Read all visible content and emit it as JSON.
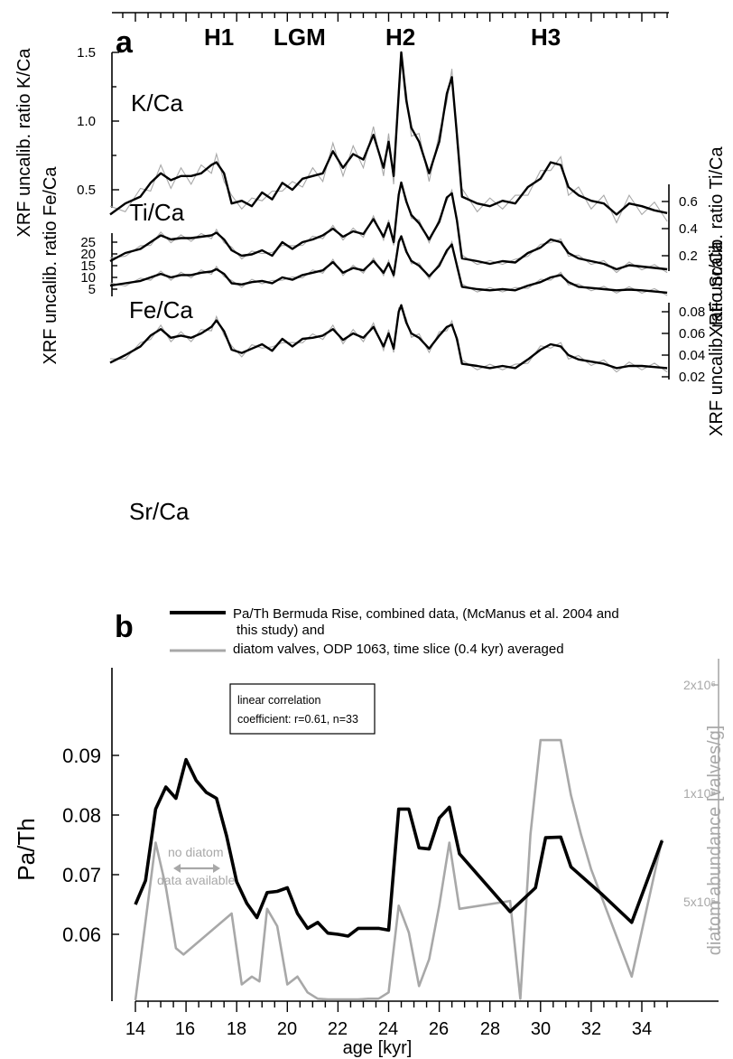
{
  "panel_a": {
    "label": "a",
    "events": [
      "H1",
      "LGM",
      "H2",
      "H3"
    ],
    "series_labels": [
      "K/Ca",
      "Ti/Ca",
      "Fe/Ca",
      "Sr/Ca"
    ],
    "ylabel_k": "XRF uncalib. ratio K/Ca",
    "ylabel_ti": "XRF uncalib. ratio Ti/Ca",
    "ylabel_fe": "XRF uncalib. ratio Fe/Ca",
    "ylabel_sr": "XRF uncalib. ratio Sr/Ca",
    "ticks_k": [
      "1.5",
      "1.0",
      "0.5"
    ],
    "ticks_ti": [
      "0.6",
      "0.4",
      "0.2"
    ],
    "ticks_fe": [
      "25",
      "20",
      "15",
      "10",
      "5"
    ],
    "ticks_sr": [
      "0.08",
      "0.06",
      "0.04",
      "0.02"
    ]
  },
  "panel_b": {
    "label": "b",
    "legend_line1": "Pa/Th Bermuda Rise, combined data, (McManus et al. 2004 and",
    "legend_line2": "this study) and",
    "legend_line3": "diatom valves, ODP 1063, time slice (0.4 kyr) averaged",
    "box_line1": "linear correlation",
    "box_line2": "coefficient: r=0.61, n=33",
    "annot_line1": "no diatom",
    "annot_line2": "data available",
    "ylabel_left": "Pa/Th",
    "ylabel_right": "diatom abundance [valves/g]",
    "xlabel": "age [kyr]",
    "right_ticks": [
      "2x10⁶",
      "1x10⁶",
      "5x10⁵"
    ],
    "left_ticks": [
      "0.09",
      "0.08",
      "0.07",
      "0.06"
    ],
    "x_ticks": [
      "14",
      "16",
      "18",
      "20",
      "22",
      "24",
      "26",
      "28",
      "30",
      "32",
      "34"
    ]
  },
  "colors": {
    "black_series": "#000000",
    "gray_series": "#a8a8a8"
  },
  "chart_data": [
    {
      "type": "line",
      "title": "",
      "xlabel": "",
      "ylabel": "XRF uncalib. ratio K/Ca",
      "ylim": [
        0.25,
        1.5
      ],
      "series": [
        {
          "name": "K/Ca",
          "x": [
            13.0,
            13.6,
            14.2,
            14.6,
            15.0,
            15.4,
            15.8,
            16.2,
            16.6,
            17.0,
            17.2,
            17.5,
            17.8,
            18.2,
            18.6,
            19.0,
            19.4,
            19.8,
            20.2,
            20.6,
            21.0,
            21.4,
            21.8,
            22.2,
            22.6,
            23.0,
            23.4,
            23.8,
            24.0,
            24.2,
            24.4,
            24.5,
            24.7,
            24.9,
            25.2,
            25.6,
            26.0,
            26.3,
            26.5,
            26.7,
            26.9,
            27.5,
            28.0,
            28.5,
            29.0,
            29.5,
            30.0,
            30.4,
            30.8,
            31.1,
            31.5,
            32.0,
            32.5,
            33.0,
            33.5,
            34.0,
            34.5,
            35.0
          ],
          "values": [
            0.32,
            0.4,
            0.45,
            0.55,
            0.62,
            0.57,
            0.6,
            0.6,
            0.62,
            0.68,
            0.7,
            0.62,
            0.4,
            0.42,
            0.38,
            0.48,
            0.43,
            0.55,
            0.5,
            0.58,
            0.6,
            0.62,
            0.78,
            0.66,
            0.76,
            0.72,
            0.9,
            0.66,
            0.85,
            0.6,
            1.2,
            1.5,
            1.15,
            0.95,
            0.85,
            0.62,
            0.85,
            1.2,
            1.32,
            0.9,
            0.45,
            0.4,
            0.38,
            0.42,
            0.4,
            0.52,
            0.58,
            0.7,
            0.68,
            0.52,
            0.46,
            0.42,
            0.4,
            0.32,
            0.4,
            0.38,
            0.35,
            0.33
          ]
        }
      ]
    },
    {
      "type": "line",
      "title": "",
      "xlabel": "",
      "ylabel": "XRF uncalib. ratio Ti/Ca",
      "ylim": [
        0.1,
        0.72
      ],
      "series": [
        {
          "name": "Ti/Ca",
          "x": [
            13.0,
            13.6,
            14.2,
            14.6,
            15.0,
            15.4,
            15.8,
            16.2,
            16.6,
            17.0,
            17.2,
            17.5,
            17.8,
            18.2,
            18.6,
            19.0,
            19.4,
            19.8,
            20.2,
            20.6,
            21.0,
            21.4,
            21.8,
            22.2,
            22.6,
            23.0,
            23.4,
            23.8,
            24.0,
            24.2,
            24.4,
            24.5,
            24.7,
            24.9,
            25.2,
            25.6,
            26.0,
            26.3,
            26.5,
            26.7,
            26.9,
            27.5,
            28.0,
            28.5,
            29.0,
            29.5,
            30.0,
            30.4,
            30.8,
            31.1,
            31.5,
            32.0,
            32.5,
            33.0,
            33.5,
            34.0,
            34.5,
            35.0
          ],
          "values": [
            0.16,
            0.22,
            0.25,
            0.3,
            0.35,
            0.32,
            0.33,
            0.33,
            0.34,
            0.35,
            0.37,
            0.32,
            0.24,
            0.2,
            0.21,
            0.24,
            0.2,
            0.3,
            0.25,
            0.3,
            0.32,
            0.35,
            0.4,
            0.34,
            0.38,
            0.36,
            0.47,
            0.34,
            0.44,
            0.3,
            0.65,
            0.74,
            0.6,
            0.5,
            0.44,
            0.32,
            0.45,
            0.63,
            0.66,
            0.46,
            0.18,
            0.16,
            0.14,
            0.16,
            0.15,
            0.22,
            0.26,
            0.32,
            0.3,
            0.22,
            0.18,
            0.16,
            0.14,
            0.1,
            0.13,
            0.12,
            0.11,
            0.1
          ]
        }
      ]
    },
    {
      "type": "line",
      "title": "",
      "xlabel": "",
      "ylabel": "XRF uncalib. ratio Fe/Ca",
      "ylim": [
        3,
        28
      ],
      "series": [
        {
          "name": "Fe/Ca",
          "x": [
            13.0,
            13.6,
            14.2,
            14.6,
            15.0,
            15.4,
            15.8,
            16.2,
            16.6,
            17.0,
            17.2,
            17.5,
            17.8,
            18.2,
            18.6,
            19.0,
            19.4,
            19.8,
            20.2,
            20.6,
            21.0,
            21.4,
            21.8,
            22.2,
            22.6,
            23.0,
            23.4,
            23.8,
            24.0,
            24.2,
            24.4,
            24.5,
            24.7,
            24.9,
            25.2,
            25.6,
            26.0,
            26.3,
            26.5,
            26.7,
            26.9,
            27.5,
            28.0,
            28.5,
            29.0,
            29.5,
            30.0,
            30.4,
            30.8,
            31.1,
            31.5,
            32.0,
            32.5,
            33.0,
            33.5,
            34.0,
            34.5,
            35.0
          ],
          "values": [
            6.5,
            7.5,
            8.5,
            10.0,
            11.5,
            10.0,
            11.0,
            11.0,
            12.0,
            12.5,
            13.5,
            11.5,
            7.5,
            7.0,
            8.0,
            8.5,
            7.5,
            10.0,
            9.0,
            11.0,
            12.0,
            13.0,
            16.5,
            12.0,
            14.0,
            13.0,
            17.0,
            12.0,
            16.0,
            11.0,
            25.0,
            27.5,
            21.0,
            17.0,
            15.0,
            10.5,
            15.0,
            21.5,
            24.0,
            15.0,
            6.0,
            5.0,
            4.5,
            5.0,
            4.5,
            6.5,
            8.0,
            10.0,
            11.0,
            8.0,
            6.0,
            5.5,
            5.0,
            4.5,
            4.8,
            4.5,
            4.0,
            3.5
          ]
        }
      ]
    },
    {
      "type": "line",
      "title": "",
      "xlabel": "",
      "ylabel": "XRF uncalib. ratio Sr/Ca",
      "ylim": [
        0.02,
        0.095
      ],
      "series": [
        {
          "name": "Sr/Ca",
          "x": [
            13.0,
            13.6,
            14.2,
            14.6,
            15.0,
            15.4,
            15.8,
            16.2,
            16.6,
            17.0,
            17.2,
            17.5,
            17.8,
            18.2,
            18.6,
            19.0,
            19.4,
            19.8,
            20.2,
            20.6,
            21.0,
            21.4,
            21.8,
            22.2,
            22.6,
            23.0,
            23.4,
            23.8,
            24.0,
            24.2,
            24.4,
            24.5,
            24.7,
            24.9,
            25.2,
            25.6,
            26.0,
            26.3,
            26.5,
            26.7,
            26.9,
            27.5,
            28.0,
            28.5,
            29.0,
            29.5,
            30.0,
            30.4,
            30.8,
            31.1,
            31.5,
            32.0,
            32.5,
            33.0,
            33.5,
            34.0,
            34.5,
            35.0
          ],
          "values": [
            0.033,
            0.04,
            0.048,
            0.058,
            0.064,
            0.056,
            0.058,
            0.056,
            0.06,
            0.066,
            0.072,
            0.062,
            0.045,
            0.042,
            0.046,
            0.05,
            0.044,
            0.055,
            0.048,
            0.055,
            0.056,
            0.058,
            0.064,
            0.054,
            0.06,
            0.056,
            0.066,
            0.048,
            0.06,
            0.046,
            0.08,
            0.086,
            0.07,
            0.06,
            0.056,
            0.046,
            0.058,
            0.066,
            0.068,
            0.055,
            0.032,
            0.03,
            0.028,
            0.03,
            0.028,
            0.036,
            0.045,
            0.05,
            0.048,
            0.04,
            0.036,
            0.034,
            0.032,
            0.028,
            0.03,
            0.03,
            0.029,
            0.028
          ]
        }
      ]
    },
    {
      "type": "line",
      "title": "",
      "xlabel": "age [kyr]",
      "ylabel": "Pa/Th",
      "xlim": [
        13,
        35
      ],
      "ylim": [
        0.055,
        0.095
      ],
      "series": [
        {
          "name": "Pa/Th Bermuda Rise, combined data, (McManus et al. 2004 and this study)",
          "x": [
            14.0,
            14.4,
            14.8,
            15.2,
            15.6,
            16.0,
            16.4,
            16.8,
            17.2,
            17.6,
            18.0,
            18.4,
            18.8,
            19.2,
            19.6,
            20.0,
            20.4,
            20.8,
            21.2,
            21.6,
            22.0,
            22.4,
            22.8,
            23.2,
            23.6,
            24.0,
            24.4,
            24.8,
            25.2,
            25.6,
            26.0,
            26.4,
            26.8,
            28.8,
            29.8,
            30.2,
            30.8,
            31.2,
            32.4,
            33.6,
            34.8
          ],
          "values": [
            0.065,
            0.069,
            0.081,
            0.0847,
            0.0828,
            0.0893,
            0.0858,
            0.0838,
            0.0828,
            0.0765,
            0.0688,
            0.0652,
            0.0628,
            0.067,
            0.0672,
            0.0678,
            0.0635,
            0.061,
            0.062,
            0.0602,
            0.06,
            0.0597,
            0.061,
            0.061,
            0.061,
            0.0607,
            0.081,
            0.081,
            0.0745,
            0.0743,
            0.0795,
            0.0813,
            0.0735,
            0.0638,
            0.0678,
            0.0762,
            0.0763,
            0.0713,
            0.0668,
            0.062,
            0.0757
          ]
        },
        {
          "name": "diatom valves, ODP 1063, time slice (0.4 kyr) averaged",
          "x": [
            14.0,
            14.4,
            14.8,
            15.2,
            15.6,
            15.9,
            17.8,
            18.2,
            18.6,
            18.9,
            19.2,
            19.6,
            20.0,
            20.4,
            20.8,
            21.2,
            21.6,
            22.0,
            22.4,
            22.8,
            23.2,
            23.6,
            24.0,
            24.4,
            24.8,
            25.2,
            25.6,
            26.0,
            26.4,
            26.8,
            28.8,
            29.2,
            29.6,
            30.0,
            30.4,
            30.8,
            31.2,
            31.6,
            32.0,
            33.6,
            34.8
          ],
          "values": [
            0,
            500000,
            1000000,
            720000,
            330000,
            290000,
            550000,
            100000,
            150000,
            120000,
            580000,
            470000,
            100000,
            150000,
            50000,
            10000,
            5000,
            5000,
            5000,
            5000,
            10000,
            10000,
            50000,
            600000,
            430000,
            90000,
            260000,
            600000,
            1000000,
            580000,
            630000,
            10000,
            1050000,
            1650000,
            1650000,
            1650000,
            1300000,
            1050000,
            830000,
            150000,
            1020000
          ]
        }
      ]
    }
  ]
}
